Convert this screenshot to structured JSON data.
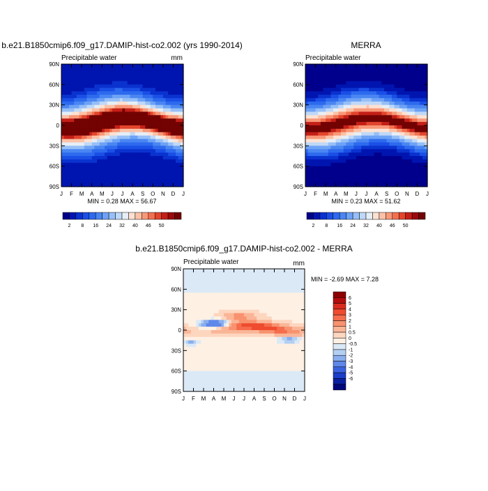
{
  "page": {
    "background": "#ffffff"
  },
  "panels": {
    "model": {
      "title": "b.e21.B1850cmip6.f09_g17.DAMIP-hist-co2.002 (yrs 1990-2014)",
      "subtitle_left": "Precipitable water",
      "units": "mm",
      "stats": "MIN =   0.28 MAX =  56.67"
    },
    "obs": {
      "title": "MERRA",
      "subtitle_left": "Precipitable water",
      "units": "",
      "stats": "MIN =   0.23 MAX =  51.62"
    },
    "diff": {
      "title": "b.e21.B1850cmip6.f09_g17.DAMIP-hist-co2.002 - MERRA",
      "subtitle_left": "Precipitable water",
      "units": "mm",
      "stats": "MIN =  -2.69 MAX =   7.28"
    }
  },
  "chart_data": [
    {
      "type": "heatmap",
      "title": "b.e21.B1850cmip6.f09_g17.DAMIP-hist-co2.002 (yrs 1990-2014)",
      "field": "Precipitable water",
      "units": "mm",
      "x_ticks": [
        "J",
        "F",
        "M",
        "A",
        "M",
        "J",
        "J",
        "A",
        "S",
        "O",
        "N",
        "D",
        "J"
      ],
      "y_ticks": [
        "90N",
        "60N",
        "30N",
        "0",
        "30S",
        "60S",
        "90S"
      ],
      "min": 0.28,
      "max": 56.67,
      "colorbar_labels": [
        "2",
        "8",
        "16",
        "24",
        "32",
        "40",
        "46",
        "50"
      ],
      "colorbar_levels": [
        2,
        4,
        6,
        8,
        12,
        16,
        20,
        24,
        28,
        32,
        36,
        40,
        44,
        46,
        48,
        50
      ],
      "colors": [
        "#00008c",
        "#0015b0",
        "#0a32cf",
        "#1a4fe6",
        "#2d6aee",
        "#4a86f2",
        "#6da2f5",
        "#96bff7",
        "#bfd8f8",
        "#e6eef6",
        "#fce1d3",
        "#fbc1a6",
        "#f89878",
        "#f2704f",
        "#e2452c",
        "#c41f17",
        "#9c0a0a",
        "#730303"
      ],
      "missing_colorbar_note": "",
      "overview": {
        "equator_max_mm": 56.67,
        "maxima_band": "north of equator in Jul-Sep, near equator in Jan-Mar",
        "poles": "near 0-4 mm"
      }
    },
    {
      "type": "heatmap",
      "title": "MERRA",
      "field": "Precipitable water",
      "units": "",
      "x_ticks": [
        "J",
        "F",
        "M",
        "A",
        "M",
        "J",
        "J",
        "A",
        "S",
        "O",
        "N",
        "D",
        "J"
      ],
      "y_ticks": [
        "90N",
        "60N",
        "30N",
        "0",
        "30S",
        "60S",
        "90S"
      ],
      "min": 0.23,
      "max": 51.62,
      "colorbar_labels": [
        "2",
        "8",
        "16",
        "24",
        "32",
        "40",
        "46",
        "50"
      ],
      "colorbar_levels": [
        2,
        4,
        6,
        8,
        12,
        16,
        20,
        24,
        28,
        32,
        36,
        40,
        44,
        46,
        48,
        50
      ],
      "colors": [
        "#00008c",
        "#0015b0",
        "#0a32cf",
        "#1a4fe6",
        "#2d6aee",
        "#4a86f2",
        "#6da2f5",
        "#96bff7",
        "#bfd8f8",
        "#e6eef6",
        "#fce1d3",
        "#fbc1a6",
        "#f89878",
        "#f2704f",
        "#e2452c",
        "#c41f17",
        "#9c0a0a",
        "#730303"
      ]
    },
    {
      "type": "heatmap",
      "title": "b.e21.B1850cmip6.f09_g17.DAMIP-hist-co2.002 - MERRA",
      "field": "Precipitable water",
      "units": "mm",
      "x_ticks": [
        "J",
        "F",
        "M",
        "A",
        "M",
        "J",
        "J",
        "A",
        "S",
        "O",
        "N",
        "D",
        "J"
      ],
      "y_ticks": [
        "90N",
        "60N",
        "30N",
        "0",
        "30S",
        "60S",
        "90S"
      ],
      "min": -2.69,
      "max": 7.28,
      "colorbar_labels": [
        "6",
        "5",
        "4",
        "3",
        "2",
        "1",
        "0.5",
        "0",
        "-0.5",
        "-1",
        "-2",
        "-3",
        "-4",
        "-5",
        "-6"
      ],
      "colors": [
        "#8c0000",
        "#b40c0c",
        "#d92b1d",
        "#ef4b2f",
        "#f56d4c",
        "#f8926f",
        "#fab597",
        "#fdd6bf",
        "#fff0e4",
        "#dbe9f6",
        "#b3cff2",
        "#8aaeee",
        "#5f88ea",
        "#3a63e0",
        "#1a3ec9",
        "#0a1fa0",
        "#00077a"
      ],
      "diff_levels": [
        6,
        5,
        4,
        3,
        2,
        1,
        0.5,
        0,
        -0.5,
        -1,
        -2,
        -3,
        -4,
        -5,
        -6
      ]
    }
  ]
}
